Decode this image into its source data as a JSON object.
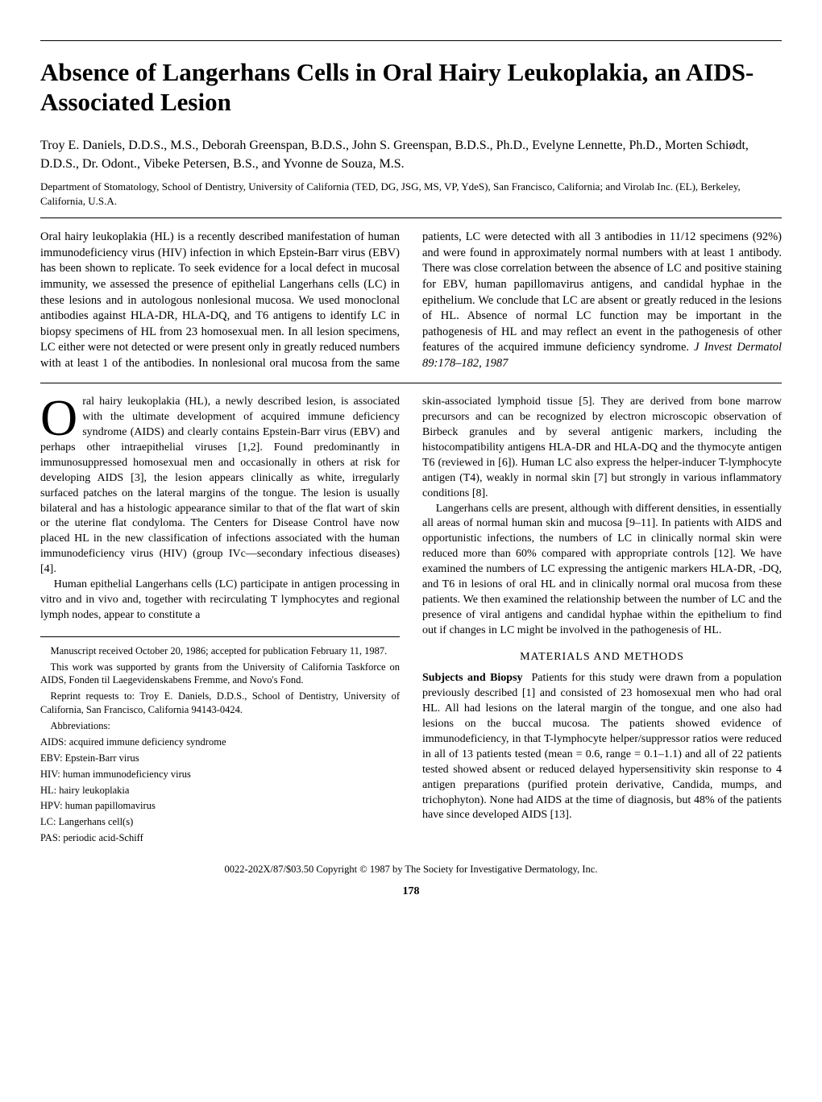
{
  "title": "Absence of Langerhans Cells in Oral Hairy Leukoplakia, an AIDS-Associated Lesion",
  "authors": "Troy E. Daniels, D.D.S., M.S., Deborah Greenspan, B.D.S., John S. Greenspan, B.D.S., Ph.D., Evelyne Lennette, Ph.D., Morten Schiødt, D.D.S., Dr. Odont., Vibeke Petersen, B.S., and Yvonne de Souza, M.S.",
  "affiliation": "Department of Stomatology, School of Dentistry, University of California (TED, DG, JSG, MS, VP, YdeS), San Francisco, California; and Virolab Inc. (EL), Berkeley, California, U.S.A.",
  "abstract_left": "Oral hairy leukoplakia (HL) is a recently described manifestation of human immunodeficiency virus (HIV) infection in which Epstein-Barr virus (EBV) has been shown to replicate. To seek evidence for a local defect in mucosal immunity, we assessed the presence of epithelial Langerhans cells (LC) in these lesions and in autologous nonlesional mucosa. We used monoclonal antibodies against HLA-DR, HLA-DQ, and T6 antigens to identify LC in biopsy specimens of HL from 23 homosexual men. In all lesion specimens, LC either were not detected or were present only in greatly reduced numbers with at least 1 of the antibodies. In nonlesional oral mucosa from the same pa",
  "abstract_right": "tients, LC were detected with all 3 antibodies in 11/12 specimens (92%) and were found in approximately normal numbers with at least 1 antibody. There was close correlation between the absence of LC and positive staining for EBV, human papillomavirus antigens, and candidal hyphae in the epithelium. We conclude that LC are absent or greatly reduced in the lesions of HL. Absence of normal LC function may be important in the pathogenesis of HL and may reflect an event in the pathogenesis of other features of the acquired immune deficiency syndrome.",
  "citation": "J Invest Dermatol 89:178–182, 1987",
  "intro_dropcap": "O",
  "intro_p1": "ral hairy leukoplakia (HL), a newly described lesion, is associated with the ultimate development of acquired immune deficiency syndrome (AIDS) and clearly contains Epstein-Barr virus (EBV) and perhaps other intraepithelial viruses [1,2]. Found predominantly in immunosuppressed homosexual men and occasionally in others at risk for developing AIDS [3], the lesion appears clinically as white, irregularly surfaced patches on the lateral margins of the tongue. The lesion is usually bilateral and has a histologic appearance similar to that of the flat wart of skin or the uterine flat condyloma. The Centers for Disease Control have now placed HL in the new classification of infections associated with the human immunodeficiency virus (HIV) (group IVc—secondary infectious diseases) [4].",
  "intro_p2": "Human epithelial Langerhans cells (LC) participate in antigen processing in vitro and in vivo and, together with recirculating T lymphocytes and regional lymph nodes, appear to constitute a",
  "intro_p3": "skin-associated lymphoid tissue [5]. They are derived from bone marrow precursors and can be recognized by electron microscopic observation of Birbeck granules and by several antigenic markers, including the histocompatibility antigens HLA-DR and HLA-DQ and the thymocyte antigen T6 (reviewed in [6]). Human LC also express the helper-inducer T-lymphocyte antigen (T4), weakly in normal skin [7] but strongly in various inflammatory conditions [8].",
  "intro_p4": "Langerhans cells are present, although with different densities, in essentially all areas of normal human skin and mucosa [9–11]. In patients with AIDS and opportunistic infections, the numbers of LC in clinically normal skin were reduced more than 60% compared with appropriate controls [12]. We have examined the numbers of LC expressing the antigenic markers HLA-DR, -DQ, and T6 in lesions of oral HL and in clinically normal oral mucosa from these patients. We then examined the relationship between the number of LC and the presence of viral antigens and candidal hyphae within the epithelium to find out if changes in LC might be involved in the pathogenesis of HL.",
  "methods_head": "MATERIALS AND METHODS",
  "methods_runin": "Subjects and Biopsy",
  "methods_p1": "Patients for this study were drawn from a population previously described [1] and consisted of 23 homosexual men who had oral HL. All had lesions on the lateral margin of the tongue, and one also had lesions on the buccal mucosa. The patients showed evidence of immunodeficiency, in that T-lymphocyte helper/suppressor ratios were reduced in all of 13 patients tested (mean = 0.6, range = 0.1–1.1) and all of 22 patients tested showed absent or reduced delayed hypersensitivity skin response to 4 antigen preparations (purified protein derivative, Candida, mumps, and trichophyton). None had AIDS at the time of diagnosis, but 48% of the patients have since developed AIDS [13].",
  "footnotes": {
    "received": "Manuscript received October 20, 1986; accepted for publication February 11, 1987.",
    "support": "This work was supported by grants from the University of California Taskforce on AIDS, Fonden til Laegevidenskabens Fremme, and Novo's Fond.",
    "reprint": "Reprint requests to: Troy E. Daniels, D.D.S., School of Dentistry, University of California, San Francisco, California 94143-0424.",
    "abbrev_label": "Abbreviations:",
    "abbrevs": [
      "AIDS: acquired immune deficiency syndrome",
      "EBV: Epstein-Barr virus",
      "HIV: human immunodeficiency virus",
      "HL: hairy leukoplakia",
      "HPV: human papillomavirus",
      "LC: Langerhans cell(s)",
      "PAS: periodic acid-Schiff"
    ]
  },
  "copyright": "0022-202X/87/$03.50   Copyright © 1987 by The Society for Investigative Dermatology, Inc.",
  "page_number": "178"
}
